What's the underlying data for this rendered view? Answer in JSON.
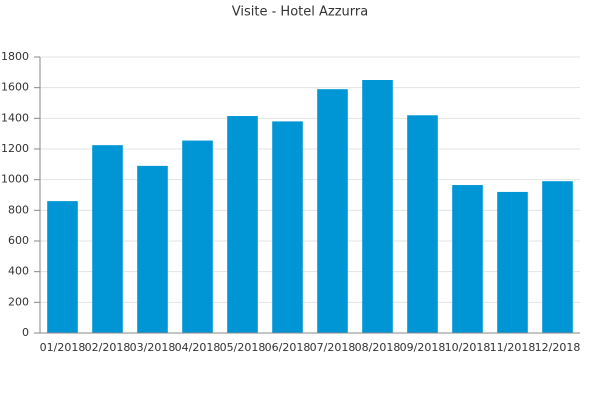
{
  "chart_data": {
    "type": "bar",
    "title": "Visite - Hotel Azzurra",
    "categories": [
      "01/2018",
      "02/2018",
      "03/2018",
      "04/2018",
      "05/2018",
      "06/2018",
      "07/2018",
      "08/2018",
      "09/2018",
      "10/2018",
      "11/2018",
      "12/2018"
    ],
    "values": [
      860,
      1225,
      1090,
      1255,
      1415,
      1380,
      1590,
      1650,
      1420,
      965,
      920,
      990
    ],
    "color": "#0096d6",
    "ylim": [
      0,
      1800
    ],
    "yticks": [
      0,
      200,
      400,
      600,
      800,
      1000,
      1200,
      1400,
      1600,
      1800
    ],
    "grid": true
  }
}
